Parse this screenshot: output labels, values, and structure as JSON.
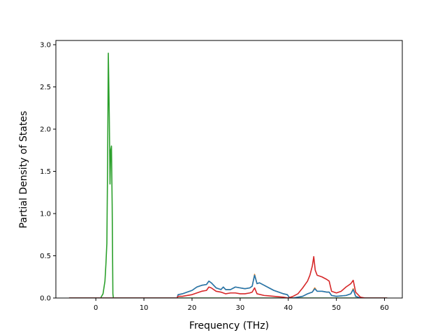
{
  "chart_data": {
    "type": "line",
    "title": "",
    "xlabel": "Frequency (THz)",
    "ylabel": "Partial Density of States",
    "xlim": [
      -8.3,
      63.7
    ],
    "ylim": [
      0,
      3.05
    ],
    "xticks": [
      0,
      10,
      20,
      30,
      40,
      50,
      60
    ],
    "yticks": [
      0.0,
      0.5,
      1.0,
      1.5,
      2.0,
      2.5,
      3.0
    ],
    "xtick_labels": [
      "0",
      "10",
      "20",
      "30",
      "40",
      "50",
      "60"
    ],
    "ytick_labels": [
      "0.0",
      "0.5",
      "1.0",
      "1.5",
      "2.0",
      "2.5",
      "3.0"
    ],
    "grid": false,
    "legend": "none",
    "series": [
      {
        "color": "#2ca02c",
        "x": [
          -5.5,
          1.0,
          1.5,
          1.9,
          2.1,
          2.3,
          2.45,
          2.6,
          2.8,
          2.95,
          3.1,
          3.25,
          3.4,
          3.55,
          3.65,
          4.0,
          10,
          20,
          30,
          40,
          50,
          60.5
        ],
        "y": [
          0,
          0,
          0.05,
          0.2,
          0.4,
          0.65,
          1.6,
          2.9,
          2.15,
          1.35,
          1.75,
          1.8,
          1.1,
          0.05,
          0,
          0,
          0,
          0,
          0,
          0,
          0,
          0
        ]
      },
      {
        "color": "#ff7f0e",
        "x": [
          -5.5,
          16.9,
          17.1,
          18,
          19,
          20,
          21,
          22,
          23,
          23.5,
          24,
          25,
          26,
          26.5,
          27,
          28,
          29,
          30,
          31,
          32,
          32.5,
          33,
          33.5,
          34,
          35,
          36,
          37,
          38,
          39,
          39.8,
          40.3,
          41,
          43,
          44,
          45,
          45.5,
          46,
          47,
          48,
          48.5,
          49,
          50,
          52,
          53,
          53.5,
          54,
          55,
          60.5
        ],
        "y": [
          0,
          0,
          0.04,
          0.05,
          0.07,
          0.09,
          0.13,
          0.15,
          0.16,
          0.2,
          0.18,
          0.12,
          0.1,
          0.13,
          0.1,
          0.1,
          0.13,
          0.12,
          0.11,
          0.12,
          0.14,
          0.28,
          0.17,
          0.18,
          0.15,
          0.12,
          0.09,
          0.07,
          0.05,
          0.04,
          0.0,
          0.0,
          0.02,
          0.05,
          0.07,
          0.12,
          0.08,
          0.08,
          0.07,
          0.07,
          0.03,
          0.02,
          0.03,
          0.05,
          0.11,
          0.02,
          0.0,
          0
        ]
      },
      {
        "color": "#1f77b4",
        "x": [
          -5.5,
          16.9,
          17.1,
          18,
          19,
          20,
          21,
          22,
          23,
          23.5,
          24,
          25,
          26,
          26.5,
          27,
          28,
          29,
          30,
          31,
          32,
          32.5,
          33,
          33.5,
          34,
          35,
          36,
          37,
          38,
          39,
          39.8,
          40.3,
          41,
          43,
          44,
          45,
          45.5,
          46,
          47,
          48,
          48.5,
          49,
          50,
          52,
          53,
          53.5,
          54,
          55,
          60.5
        ],
        "y": [
          0,
          0,
          0.04,
          0.05,
          0.07,
          0.09,
          0.13,
          0.15,
          0.16,
          0.2,
          0.18,
          0.12,
          0.1,
          0.13,
          0.1,
          0.1,
          0.13,
          0.12,
          0.11,
          0.12,
          0.14,
          0.27,
          0.17,
          0.18,
          0.15,
          0.12,
          0.09,
          0.07,
          0.05,
          0.04,
          0.0,
          0.0,
          0.02,
          0.05,
          0.07,
          0.11,
          0.08,
          0.08,
          0.07,
          0.07,
          0.03,
          0.02,
          0.03,
          0.05,
          0.1,
          0.02,
          0.0,
          0
        ]
      },
      {
        "color": "#d62728",
        "x": [
          -5.5,
          16.9,
          17.1,
          18,
          20,
          21,
          22,
          23,
          23.5,
          24,
          25,
          26,
          27,
          28,
          29,
          30,
          31,
          32,
          32.5,
          33,
          33.5,
          35,
          37,
          39,
          40,
          40.5,
          41,
          42,
          43,
          44,
          44.5,
          45,
          45.3,
          45.6,
          46,
          47,
          48,
          48.5,
          49,
          50,
          51,
          52,
          52.5,
          53,
          53.5,
          54,
          55,
          56,
          60.5
        ],
        "y": [
          0,
          0,
          0.02,
          0.02,
          0.04,
          0.06,
          0.08,
          0.09,
          0.13,
          0.12,
          0.08,
          0.07,
          0.05,
          0.06,
          0.06,
          0.05,
          0.05,
          0.06,
          0.07,
          0.12,
          0.05,
          0.03,
          0.02,
          0.01,
          0.0,
          0.01,
          0.02,
          0.05,
          0.12,
          0.2,
          0.27,
          0.38,
          0.49,
          0.33,
          0.27,
          0.25,
          0.22,
          0.2,
          0.08,
          0.06,
          0.08,
          0.13,
          0.15,
          0.17,
          0.21,
          0.07,
          0.01,
          0.0,
          0
        ]
      }
    ]
  }
}
